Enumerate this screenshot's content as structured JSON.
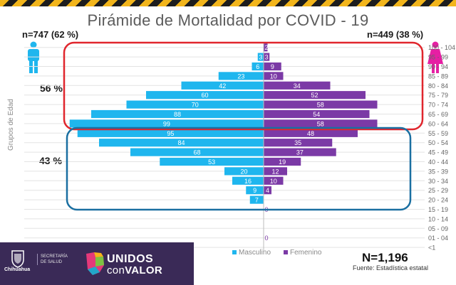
{
  "title": "Pirámide de Mortalidad por COVID - 19",
  "male_count": "n=747 (62 %)",
  "female_count": "n=449 (38 %)",
  "upper_group_pct": "56 %",
  "lower_group_pct": "43 %",
  "total": "N=1,196",
  "source": "Fuente: Estadística estatal",
  "icons": {
    "male": "male-person-icon",
    "female": "female-person-icon"
  },
  "footer": {
    "state_label": "Chihuahua",
    "secretaria": "SECRETARÍA",
    "de_salud": "DE SALUD",
    "brand_top": "UNIDOS",
    "brand_con": "con",
    "brand_valor": "VALOR"
  },
  "colors": {
    "male": "#1fb6ee",
    "female": "#7b3aa6",
    "upper_box": "#e0262d",
    "lower_box": "#1a6fa1",
    "footer": "#3a2a57"
  },
  "chart_data": {
    "type": "bar",
    "orientation": "horizontal-pyramid",
    "ylabel": "Grupos de Edad",
    "categories": [
      "100 - 104",
      "95 - 99",
      "90 - 94",
      "85 - 89",
      "80 - 84",
      "75 - 79",
      "70 - 74",
      "65 - 69",
      "60 - 64",
      "55 - 59",
      "50 - 54",
      "45 - 49",
      "40 - 44",
      "35 - 39",
      "30 - 34",
      "25 - 29",
      "20 - 24",
      "15 - 19",
      "10 - 14",
      "05 - 09",
      "01 - 04",
      "<1"
    ],
    "series": [
      {
        "name": "Masculino",
        "values": [
          0,
          3,
          6,
          23,
          42,
          60,
          70,
          88,
          99,
          95,
          84,
          68,
          53,
          20,
          16,
          9,
          7,
          0,
          0,
          0,
          0,
          0
        ]
      },
      {
        "name": "Femenino",
        "values": [
          2,
          3,
          9,
          10,
          34,
          52,
          58,
          54,
          58,
          48,
          35,
          37,
          19,
          12,
          10,
          4,
          0,
          0,
          0,
          0,
          0,
          0
        ]
      }
    ],
    "labels_male": [
      "",
      "3",
      "6",
      "23",
      "42",
      "60",
      "70",
      "88",
      "99",
      "95",
      "84",
      "68",
      "53",
      "20",
      "16",
      "9",
      "7",
      "",
      "",
      "",
      "",
      ""
    ],
    "labels_female": [
      "2",
      "3",
      "9",
      "10",
      "34",
      "52",
      "58",
      "54",
      "58",
      "48",
      "35",
      "37",
      "19",
      "12",
      "10",
      "4",
      "",
      "0",
      "",
      "",
      "0",
      ""
    ],
    "annotations": [
      "56 %",
      "43 %"
    ],
    "legend": "bottom"
  }
}
